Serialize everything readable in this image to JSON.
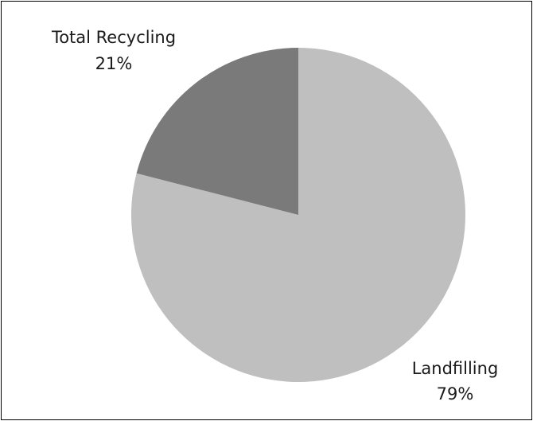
{
  "chart_data": {
    "type": "pie",
    "start_angle_deg": 0,
    "direction": "clockwise",
    "slices": [
      {
        "label": "Landfilling",
        "value": 79,
        "value_label": "79%",
        "color": "#bfbfbf"
      },
      {
        "label": "Total Recycling",
        "value": 21,
        "value_label": "21%",
        "color": "#7a7a7a"
      }
    ]
  }
}
